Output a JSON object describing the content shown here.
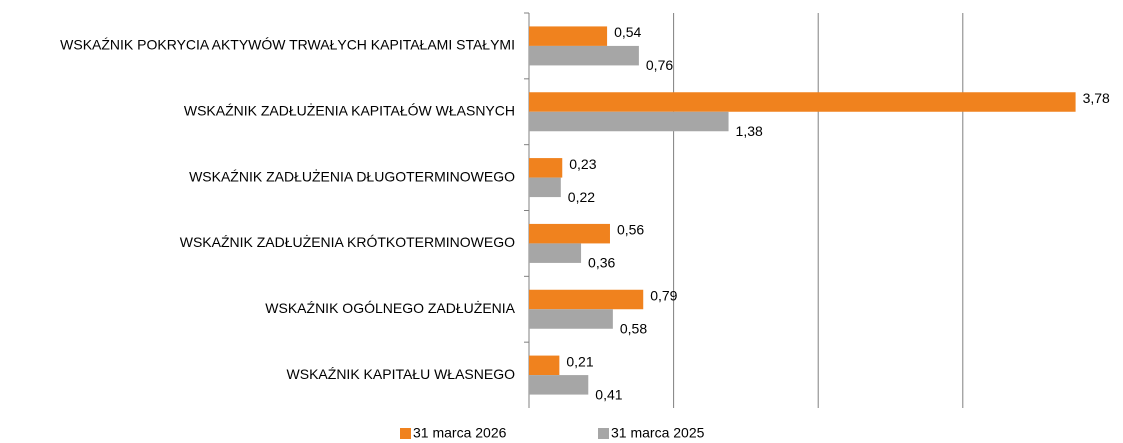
{
  "chart_data": {
    "type": "hbar",
    "categories": [
      "WSKAŹNIK POKRYCIA AKTYWÓW TRWAŁYCH KAPITAŁAMI STAŁYMI",
      "WSKAŹNIK ZADŁUŻENIA KAPITAŁÓW WŁASNYCH",
      "WSKAŹNIK ZADŁUŻENIA DŁUGOTERMINOWEGO",
      "WSKAŹNIK ZADŁUŻENIA KRÓTKOTERMINOWEGO",
      "WSKAŹNIK OGÓLNEGO ZADŁUŻENIA",
      "WSKAŹNIK KAPITAŁU WŁASNEGO"
    ],
    "series": [
      {
        "name": "31 marca 2026",
        "color": "#f0821e",
        "values": [
          0.54,
          3.78,
          0.23,
          0.56,
          0.79,
          0.21
        ],
        "value_labels": [
          "0,54",
          "3,78",
          "0,23",
          "0,56",
          "0,79",
          "0,21"
        ]
      },
      {
        "name": "31 marca 2025",
        "color": "#a6a6a6",
        "values": [
          0.76,
          1.38,
          0.22,
          0.36,
          0.58,
          0.41
        ],
        "value_labels": [
          "0,76",
          "1,38",
          "0,22",
          "0,36",
          "0,58",
          "0,41"
        ]
      }
    ],
    "xlim": [
      0,
      4
    ],
    "xticks": [
      1,
      2,
      3
    ],
    "grid": true,
    "legend": "bottom"
  }
}
